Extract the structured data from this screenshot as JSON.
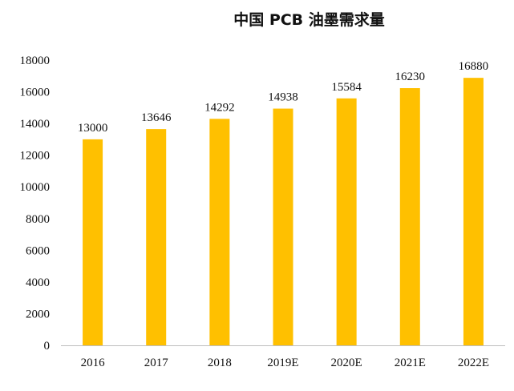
{
  "chart_data": {
    "type": "bar",
    "title": "中国 PCB 油墨需求量",
    "xlabel": "",
    "ylabel": "",
    "categories": [
      "2016",
      "2017",
      "2018",
      "2019E",
      "2020E",
      "2021E",
      "2022E"
    ],
    "values": [
      13000,
      13646,
      14292,
      14938,
      15584,
      16230,
      16880
    ],
    "data_labels": [
      "13000",
      "13646",
      "14292",
      "14938",
      "15584",
      "16230",
      "16880"
    ],
    "ylim": [
      0,
      18000
    ],
    "yticks": [
      "0",
      "2000",
      "4000",
      "6000",
      "8000",
      "10000",
      "12000",
      "14000",
      "16000",
      "18000"
    ],
    "grid": false,
    "legend": "none",
    "bar_color": "#FFC000",
    "axis_color": "#bfbfbf"
  }
}
